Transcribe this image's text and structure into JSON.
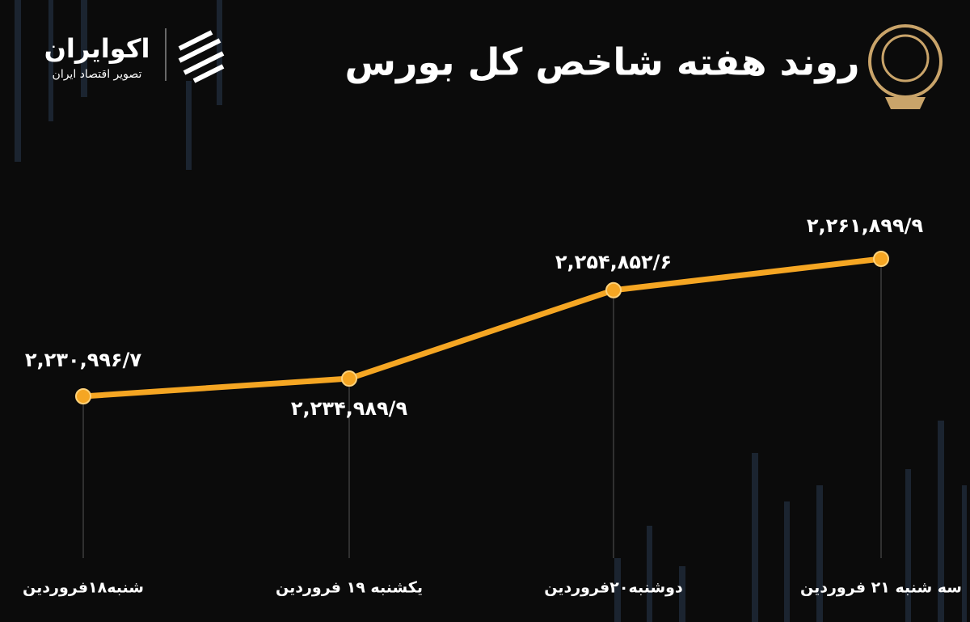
{
  "chart_data": {
    "type": "line",
    "title": "روند هفته شاخص کل بورس",
    "brand": {
      "name": "اکوایران",
      "tagline": "تصویر اقتصاد ایران"
    },
    "categories": [
      "شنبه۱۸فروردین",
      "یکشنبه ۱۹ فروردین",
      "دوشنبه۲۰فروردین",
      "سه شنبه ۲۱ فروردین"
    ],
    "values": [
      2230996.7,
      2234989.9,
      2254852.6,
      2261899.9
    ],
    "value_labels": [
      "۲,۲۳۰,۹۹۶/۷",
      "۲,۲۳۴,۹۸۹/۹",
      "۲,۲۵۴,۸۵۲/۶",
      "۲,۲۶۱,۸۹۹/۹"
    ],
    "color": "#f5a623"
  }
}
